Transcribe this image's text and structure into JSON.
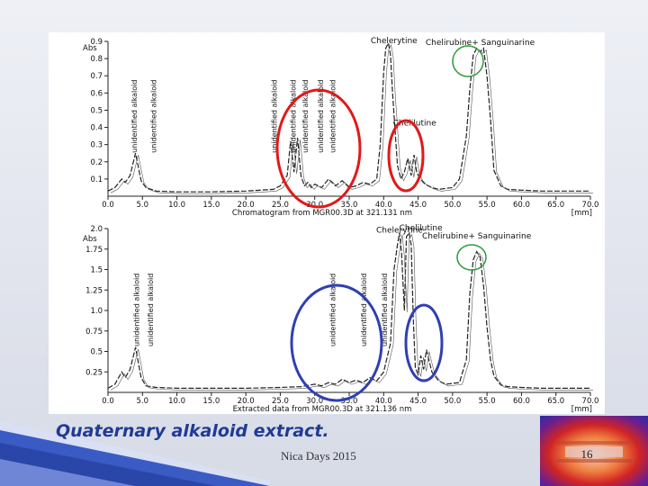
{
  "slide": {
    "caption": "Quaternary alkaloid extract.",
    "footer": "Nica Days 2015",
    "page_number": "16"
  },
  "colors": {
    "caption": "#1f3b95",
    "red_circle": "#e11919",
    "blue_circle": "#2f3fb3",
    "green_circle": "#2e9a3a"
  },
  "chart_data": [
    {
      "type": "line",
      "title": "",
      "xlabel": "Chromatogram from MGR00.3D at 321.131 nm",
      "x_unit": "[mm]",
      "ylabel": "Abs",
      "xlim": [
        0,
        70
      ],
      "ylim": [
        0,
        0.9
      ],
      "x_ticks": [
        "0.0",
        "5.0",
        "10.0",
        "15.0",
        "20.0",
        "25.0",
        "30.0",
        "35.0",
        "40.0",
        "45.0",
        "50.0",
        "55.0",
        "60.0",
        "65.0",
        "70.0"
      ],
      "y_ticks": [
        "0.1",
        "0.2",
        "0.3",
        "0.4",
        "0.5",
        "0.6",
        "0.7",
        "0.8",
        "0.9"
      ],
      "series": [
        {
          "x": [
            0,
            1,
            2,
            2.5,
            3.2,
            4,
            4.8,
            5.5,
            7,
            10,
            15,
            20,
            24,
            25,
            26,
            26.5,
            27,
            27.5,
            28,
            28.5,
            29,
            29.5,
            30,
            31,
            32,
            33,
            34,
            35,
            36,
            37,
            38,
            39,
            39.5,
            40,
            40.3,
            40.7,
            41,
            41.3,
            42,
            42.5,
            43,
            43.5,
            44,
            44.4,
            44.8,
            45.3,
            46,
            47,
            48,
            50,
            51,
            52,
            52.5,
            53,
            53.5,
            54,
            54.5,
            55,
            55.5,
            56,
            57,
            58,
            60,
            63,
            65,
            70
          ],
          "y": [
            0.03,
            0.05,
            0.1,
            0.08,
            0.12,
            0.25,
            0.09,
            0.05,
            0.03,
            0.025,
            0.025,
            0.03,
            0.04,
            0.06,
            0.12,
            0.32,
            0.14,
            0.34,
            0.12,
            0.06,
            0.08,
            0.05,
            0.07,
            0.05,
            0.1,
            0.06,
            0.09,
            0.05,
            0.06,
            0.08,
            0.07,
            0.1,
            0.3,
            0.72,
            0.86,
            0.89,
            0.82,
            0.6,
            0.18,
            0.1,
            0.14,
            0.22,
            0.12,
            0.24,
            0.14,
            0.1,
            0.07,
            0.05,
            0.04,
            0.05,
            0.1,
            0.35,
            0.62,
            0.82,
            0.86,
            0.84,
            0.86,
            0.7,
            0.45,
            0.15,
            0.06,
            0.04,
            0.035,
            0.03,
            0.03,
            0.03
          ]
        }
      ],
      "annotations": [
        {
          "text": "Chelerytine",
          "x": 41.5,
          "y": 0.9
        },
        {
          "text": "Chelirubine+ Sanguinarine",
          "x": 54,
          "y": 0.89
        },
        {
          "text": "Chelilutine",
          "x": 44.5,
          "y": 0.42
        },
        {
          "text": "unidentified alkaloid",
          "x": 4.2
        },
        {
          "text": "unidentified alkaloid",
          "x": 7.0
        },
        {
          "text": "unidentified alkaloid",
          "x": 24.5
        },
        {
          "text": "unidentified alkaloid",
          "x": 27.2
        },
        {
          "text": "unidentified alkaloid",
          "x": 29.0
        },
        {
          "text": "unidentified alkaloid",
          "x": 31.2
        },
        {
          "text": "unidentified alkaloid",
          "x": 33.0
        }
      ]
    },
    {
      "type": "line",
      "title": "",
      "xlabel": "Extracted data from MGR00.3D at 321.136 nm",
      "x_unit": "[mm]",
      "ylabel": "Abs",
      "xlim": [
        0,
        70
      ],
      "ylim": [
        0,
        2.0
      ],
      "x_ticks": [
        "0.0",
        "5.0",
        "10.0",
        "15.0",
        "20.0",
        "25.0",
        "30.0",
        "35.0",
        "40.0",
        "45.0",
        "50.0",
        "55.0",
        "60.0",
        "65.0",
        "70.0"
      ],
      "y_ticks": [
        "0.25",
        "0.5",
        "0.75",
        "1.0",
        "1.25",
        "1.5",
        "1.75",
        "2.0"
      ],
      "series": [
        {
          "x": [
            0,
            1,
            2,
            2.5,
            3.2,
            4,
            4.8,
            5.5,
            7,
            10,
            15,
            20,
            25,
            28,
            30,
            31,
            32,
            33,
            34,
            35,
            36,
            37,
            38,
            39,
            40,
            41,
            41.5,
            42,
            42.3,
            42.6,
            43,
            43.3,
            43.7,
            44,
            44.3,
            44.6,
            45,
            45.4,
            45.8,
            46.2,
            47,
            48,
            49,
            51,
            52,
            52.5,
            53,
            53.5,
            54,
            54.5,
            55,
            55.5,
            56,
            57,
            58,
            60,
            63,
            65,
            70
          ],
          "y": [
            0.05,
            0.1,
            0.25,
            0.18,
            0.28,
            0.55,
            0.18,
            0.08,
            0.06,
            0.05,
            0.05,
            0.05,
            0.06,
            0.07,
            0.1,
            0.08,
            0.12,
            0.1,
            0.16,
            0.12,
            0.15,
            0.12,
            0.18,
            0.14,
            0.25,
            0.6,
            1.5,
            1.8,
            1.95,
            1.7,
            1.0,
            1.9,
            1.95,
            1.8,
            0.9,
            0.3,
            0.22,
            0.45,
            0.28,
            0.52,
            0.25,
            0.14,
            0.1,
            0.12,
            0.4,
            1.2,
            1.62,
            1.72,
            1.65,
            1.3,
            0.8,
            0.4,
            0.2,
            0.09,
            0.07,
            0.06,
            0.05,
            0.05,
            0.05
          ]
        }
      ],
      "annotations": [
        {
          "text": "Chelerytine",
          "x": 42.3,
          "y": 1.97
        },
        {
          "text": "Chelilutine",
          "x": 45.4,
          "y": 2.0
        },
        {
          "text": "Chelirubine+ Sanguinarine",
          "x": 53.5,
          "y": 1.9
        },
        {
          "text": "unidentified alkaloid",
          "x": 4.5
        },
        {
          "text": "unidentified alkaloid",
          "x": 6.5
        },
        {
          "text": "unidentified alkaloid",
          "x": 33.0
        },
        {
          "text": "unidentified alkaloid",
          "x": 37.5
        },
        {
          "text": "unidentified alkaloid",
          "x": 40.5
        }
      ]
    }
  ]
}
